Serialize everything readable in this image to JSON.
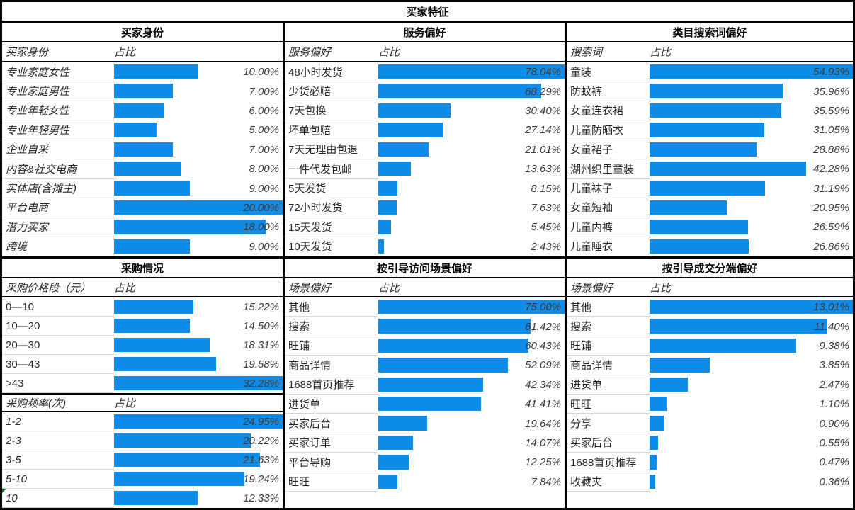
{
  "title": "买家特征",
  "colors": {
    "bar": "#0f8ce8",
    "border": "#000000",
    "grid_line": "#d9d9d9",
    "label_text": "#262626",
    "value_text": "#3a3a3a",
    "flag_green": "#0e7a1e"
  },
  "chart_data": [
    {
      "id": "buyer-identity",
      "type": "bar",
      "orientation": "horizontal",
      "section_title": "买家身份",
      "col_headers": [
        "买家身份",
        "占比"
      ],
      "italic_labels": true,
      "value_format": "percent",
      "categories": [
        "专业家庭女性",
        "专业家庭男性",
        "专业年轻女性",
        "专业年轻男性",
        "企业自采",
        "内容&社交电商",
        "实体店(含摊主)",
        "平台电商",
        "潜力买家",
        "跨境"
      ],
      "values": [
        10.0,
        7.0,
        6.0,
        5.0,
        7.0,
        8.0,
        9.0,
        20.0,
        18.0,
        9.0
      ],
      "display": [
        "10.00%",
        "7.00%",
        "6.00%",
        "5.00%",
        "7.00%",
        "8.00%",
        "9.00%",
        "20.00%",
        "18.00%",
        "9.00%"
      ]
    },
    {
      "id": "service-preference",
      "type": "bar",
      "orientation": "horizontal",
      "section_title": "服务偏好",
      "col_headers": [
        "服务偏好",
        "占比"
      ],
      "italic_labels": false,
      "value_format": "percent",
      "categories": [
        "48小时发货",
        "少货必赔",
        "7天包换",
        "坏单包赔",
        "7天无理由包退",
        "一件代发包邮",
        "5天发货",
        "72小时发货",
        "15天发货",
        "10天发货"
      ],
      "values": [
        78.04,
        68.29,
        30.4,
        27.14,
        21.01,
        13.63,
        8.15,
        7.63,
        5.45,
        2.43
      ],
      "display": [
        "78.04%",
        "68.29%",
        "30.40%",
        "27.14%",
        "21.01%",
        "13.63%",
        "8.15%",
        "7.63%",
        "5.45%",
        "2.43%"
      ]
    },
    {
      "id": "category-search-terms",
      "type": "bar",
      "orientation": "horizontal",
      "section_title": "类目搜索词偏好",
      "col_headers": [
        "搜索词",
        "占比"
      ],
      "italic_labels": false,
      "value_format": "percent",
      "categories": [
        "童装",
        "防蚊裤",
        "女童连衣裙",
        "儿童防晒衣",
        "女童裙子",
        "湖州织里童装",
        "儿童袜子",
        "女童短袖",
        "儿童内裤",
        "儿童睡衣"
      ],
      "values": [
        54.93,
        35.96,
        35.59,
        31.05,
        28.88,
        42.28,
        31.19,
        20.95,
        26.59,
        26.86
      ],
      "display": [
        "54.93%",
        "35.96%",
        "35.59%",
        "31.05%",
        "28.88%",
        "42.28%",
        "31.19%",
        "20.95%",
        "26.59%",
        "26.86%"
      ]
    },
    {
      "id": "purchase-price-range",
      "type": "bar",
      "orientation": "horizontal",
      "section_title": "采购情况",
      "col_headers": [
        "采购价格段（元）",
        "占比"
      ],
      "italic_labels": false,
      "value_format": "percent",
      "categories": [
        "0—10",
        "10—20",
        "20—30",
        "30—43",
        ">43"
      ],
      "values": [
        15.22,
        14.5,
        18.31,
        19.58,
        32.28
      ],
      "display": [
        "15.22%",
        "14.50%",
        "18.31%",
        "19.58%",
        "32.28%"
      ]
    },
    {
      "id": "purchase-frequency",
      "type": "bar",
      "orientation": "horizontal",
      "section_title": "",
      "col_headers": [
        "采购频率(次)",
        "占比"
      ],
      "italic_labels": true,
      "corner_flag_row": 4,
      "value_format": "percent",
      "categories": [
        "1-2",
        "2-3",
        "3-5",
        "5-10",
        "10"
      ],
      "values": [
        24.95,
        20.22,
        21.63,
        19.24,
        12.33
      ],
      "display": [
        "24.95%",
        "20.22%",
        "21.63%",
        "19.24%",
        "12.33%"
      ]
    },
    {
      "id": "guided-visit-scene",
      "type": "bar",
      "orientation": "horizontal",
      "section_title": "按引导访问场景偏好",
      "col_headers": [
        "场景偏好",
        "占比"
      ],
      "italic_labels": false,
      "value_format": "percent",
      "categories": [
        "其他",
        "搜索",
        "旺铺",
        "商品详情",
        "1688首页推荐",
        "进货单",
        "买家后台",
        "买家订单",
        "平台导购",
        "旺旺"
      ],
      "values": [
        75.0,
        61.42,
        60.43,
        52.09,
        42.34,
        41.41,
        19.64,
        14.07,
        12.25,
        7.84
      ],
      "display": [
        "75.00%",
        "61.42%",
        "60.43%",
        "52.09%",
        "42.34%",
        "41.41%",
        "19.64%",
        "14.07%",
        "12.25%",
        "7.84%"
      ]
    },
    {
      "id": "guided-deal-terminal",
      "type": "bar",
      "orientation": "horizontal",
      "section_title": "按引导成交分端偏好",
      "col_headers": [
        "场景偏好",
        "占比"
      ],
      "italic_labels": false,
      "value_format": "percent",
      "categories": [
        "其他",
        "搜索",
        "旺铺",
        "商品详情",
        "进货单",
        "旺旺",
        "分享",
        "买家后台",
        "1688首页推荐",
        "收藏夹"
      ],
      "values": [
        13.01,
        11.4,
        9.38,
        3.85,
        2.47,
        1.1,
        0.9,
        0.55,
        0.47,
        0.36
      ],
      "display": [
        "13.01%",
        "11.40%",
        "9.38%",
        "3.85%",
        "2.47%",
        "1.10%",
        "0.90%",
        "0.55%",
        "0.47%",
        "0.36%"
      ]
    }
  ]
}
